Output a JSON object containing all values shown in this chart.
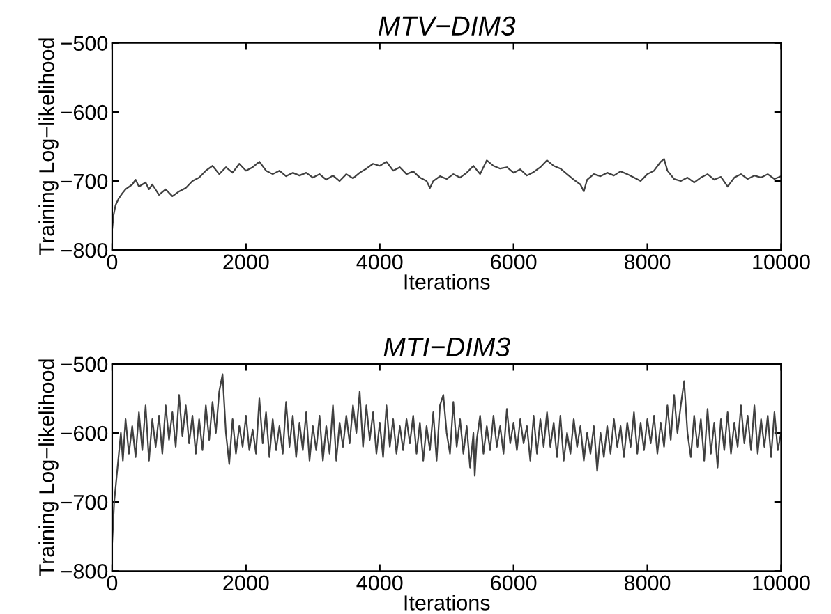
{
  "chart_data": [
    {
      "type": "line",
      "title": "MTV−DIM3",
      "xlabel": "Iterations",
      "ylabel": "Training Log−likelihood",
      "xlim": [
        0,
        10000
      ],
      "ylim": [
        -800,
        -500
      ],
      "xticks": [
        0,
        2000,
        4000,
        6000,
        8000,
        10000
      ],
      "yticks": [
        -800,
        -700,
        -600,
        -500
      ],
      "grid": false,
      "legend": false,
      "marker": "none",
      "line_style": "solid",
      "series": [
        {
          "color": "#404040",
          "x": [
            0,
            20,
            50,
            100,
            150,
            200,
            300,
            350,
            400,
            500,
            550,
            600,
            700,
            800,
            900,
            1000,
            1100,
            1200,
            1300,
            1400,
            1500,
            1600,
            1700,
            1800,
            1900,
            2000,
            2100,
            2200,
            2300,
            2400,
            2500,
            2600,
            2700,
            2800,
            2900,
            3000,
            3100,
            3200,
            3300,
            3400,
            3500,
            3600,
            3700,
            3800,
            3900,
            4000,
            4100,
            4200,
            4300,
            4400,
            4500,
            4600,
            4700,
            4750,
            4800,
            4900,
            5000,
            5100,
            5200,
            5300,
            5400,
            5500,
            5600,
            5700,
            5800,
            5900,
            6000,
            6100,
            6200,
            6300,
            6400,
            6500,
            6600,
            6700,
            6800,
            6900,
            7000,
            7050,
            7100,
            7200,
            7300,
            7400,
            7500,
            7600,
            7700,
            7800,
            7900,
            8000,
            8100,
            8200,
            8250,
            8300,
            8400,
            8500,
            8600,
            8700,
            8800,
            8900,
            9000,
            9100,
            9200,
            9300,
            9400,
            9500,
            9600,
            9700,
            9800,
            9900,
            10000
          ],
          "values": [
            -770,
            -750,
            -735,
            -725,
            -718,
            -712,
            -705,
            -698,
            -708,
            -702,
            -712,
            -705,
            -720,
            -712,
            -722,
            -715,
            -710,
            -700,
            -695,
            -685,
            -678,
            -690,
            -680,
            -688,
            -675,
            -685,
            -680,
            -672,
            -685,
            -690,
            -685,
            -693,
            -688,
            -692,
            -688,
            -695,
            -690,
            -698,
            -692,
            -700,
            -690,
            -696,
            -688,
            -682,
            -675,
            -678,
            -672,
            -685,
            -680,
            -690,
            -686,
            -695,
            -700,
            -710,
            -700,
            -693,
            -697,
            -690,
            -695,
            -688,
            -678,
            -690,
            -670,
            -678,
            -682,
            -680,
            -688,
            -683,
            -692,
            -687,
            -680,
            -670,
            -678,
            -682,
            -690,
            -698,
            -705,
            -715,
            -698,
            -690,
            -693,
            -688,
            -692,
            -686,
            -690,
            -695,
            -700,
            -690,
            -685,
            -672,
            -668,
            -685,
            -697,
            -700,
            -695,
            -702,
            -695,
            -690,
            -698,
            -694,
            -708,
            -695,
            -690,
            -697,
            -692,
            -695,
            -690,
            -697,
            -693
          ]
        }
      ]
    },
    {
      "type": "line",
      "title": "MTI−DIM3",
      "xlabel": "Iterations",
      "ylabel": "Training Log−likelihood",
      "xlim": [
        0,
        10000
      ],
      "ylim": [
        -800,
        -500
      ],
      "xticks": [
        0,
        2000,
        4000,
        6000,
        8000,
        10000
      ],
      "yticks": [
        -800,
        -700,
        -600,
        -500
      ],
      "grid": false,
      "legend": false,
      "marker": "none",
      "line_style": "solid",
      "series": [
        {
          "color": "#404040",
          "x": [
            0,
            30,
            60,
            100,
            130,
            160,
            200,
            250,
            300,
            350,
            400,
            450,
            500,
            550,
            600,
            650,
            700,
            750,
            800,
            850,
            900,
            950,
            1000,
            1050,
            1100,
            1150,
            1200,
            1250,
            1300,
            1350,
            1400,
            1450,
            1500,
            1550,
            1600,
            1650,
            1700,
            1750,
            1800,
            1850,
            1900,
            1950,
            2000,
            2050,
            2100,
            2150,
            2200,
            2250,
            2300,
            2350,
            2400,
            2450,
            2500,
            2550,
            2600,
            2650,
            2700,
            2750,
            2800,
            2850,
            2900,
            2950,
            3000,
            3050,
            3100,
            3150,
            3200,
            3250,
            3300,
            3350,
            3400,
            3450,
            3500,
            3550,
            3600,
            3650,
            3700,
            3750,
            3800,
            3850,
            3900,
            3950,
            4000,
            4050,
            4100,
            4150,
            4200,
            4250,
            4300,
            4350,
            4400,
            4450,
            4500,
            4550,
            4600,
            4650,
            4700,
            4750,
            4800,
            4850,
            4900,
            4950,
            5000,
            5050,
            5100,
            5150,
            5200,
            5250,
            5300,
            5350,
            5400,
            5420,
            5450,
            5500,
            5550,
            5600,
            5650,
            5700,
            5750,
            5800,
            5850,
            5900,
            5950,
            6000,
            6050,
            6100,
            6150,
            6200,
            6250,
            6300,
            6350,
            6400,
            6450,
            6500,
            6550,
            6600,
            6650,
            6700,
            6750,
            6800,
            6850,
            6900,
            6950,
            7000,
            7050,
            7100,
            7150,
            7200,
            7250,
            7300,
            7350,
            7400,
            7450,
            7500,
            7550,
            7600,
            7650,
            7700,
            7750,
            7800,
            7850,
            7900,
            7950,
            8000,
            8050,
            8100,
            8150,
            8200,
            8250,
            8300,
            8350,
            8400,
            8450,
            8500,
            8550,
            8600,
            8650,
            8700,
            8750,
            8800,
            8850,
            8900,
            8950,
            9000,
            9050,
            9100,
            9150,
            9200,
            9250,
            9300,
            9350,
            9400,
            9450,
            9500,
            9550,
            9600,
            9650,
            9700,
            9750,
            9800,
            9850,
            9900,
            9950,
            10000
          ],
          "values": [
            -760,
            -700,
            -670,
            -630,
            -600,
            -640,
            -580,
            -630,
            -590,
            -635,
            -570,
            -625,
            -560,
            -640,
            -580,
            -620,
            -575,
            -630,
            -560,
            -610,
            -570,
            -620,
            -545,
            -605,
            -560,
            -615,
            -575,
            -630,
            -580,
            -625,
            -560,
            -610,
            -555,
            -600,
            -540,
            -515,
            -600,
            -645,
            -580,
            -630,
            -590,
            -620,
            -575,
            -625,
            -595,
            -630,
            -550,
            -615,
            -570,
            -635,
            -580,
            -625,
            -590,
            -630,
            -555,
            -620,
            -575,
            -635,
            -585,
            -625,
            -570,
            -640,
            -590,
            -625,
            -575,
            -640,
            -590,
            -630,
            -560,
            -640,
            -585,
            -620,
            -575,
            -615,
            -560,
            -600,
            -540,
            -620,
            -560,
            -610,
            -570,
            -630,
            -585,
            -635,
            -560,
            -620,
            -580,
            -630,
            -590,
            -625,
            -580,
            -615,
            -575,
            -630,
            -585,
            -640,
            -590,
            -625,
            -570,
            -640,
            -560,
            -545,
            -600,
            -630,
            -555,
            -620,
            -580,
            -630,
            -590,
            -650,
            -600,
            -662,
            -610,
            -575,
            -630,
            -590,
            -625,
            -575,
            -620,
            -590,
            -630,
            -565,
            -615,
            -585,
            -625,
            -580,
            -615,
            -590,
            -640,
            -575,
            -630,
            -580,
            -620,
            -570,
            -620,
            -585,
            -635,
            -575,
            -640,
            -600,
            -630,
            -580,
            -620,
            -590,
            -640,
            -600,
            -630,
            -590,
            -655,
            -600,
            -635,
            -590,
            -630,
            -580,
            -620,
            -590,
            -635,
            -585,
            -620,
            -570,
            -630,
            -585,
            -625,
            -580,
            -615,
            -575,
            -630,
            -585,
            -620,
            -560,
            -610,
            -545,
            -600,
            -560,
            -525,
            -600,
            -635,
            -575,
            -620,
            -580,
            -640,
            -565,
            -630,
            -585,
            -650,
            -580,
            -625,
            -570,
            -630,
            -585,
            -620,
            -560,
            -615,
            -575,
            -625,
            -560,
            -630,
            -580,
            -620,
            -575,
            -635,
            -570,
            -625,
            -600
          ]
        }
      ]
    }
  ]
}
